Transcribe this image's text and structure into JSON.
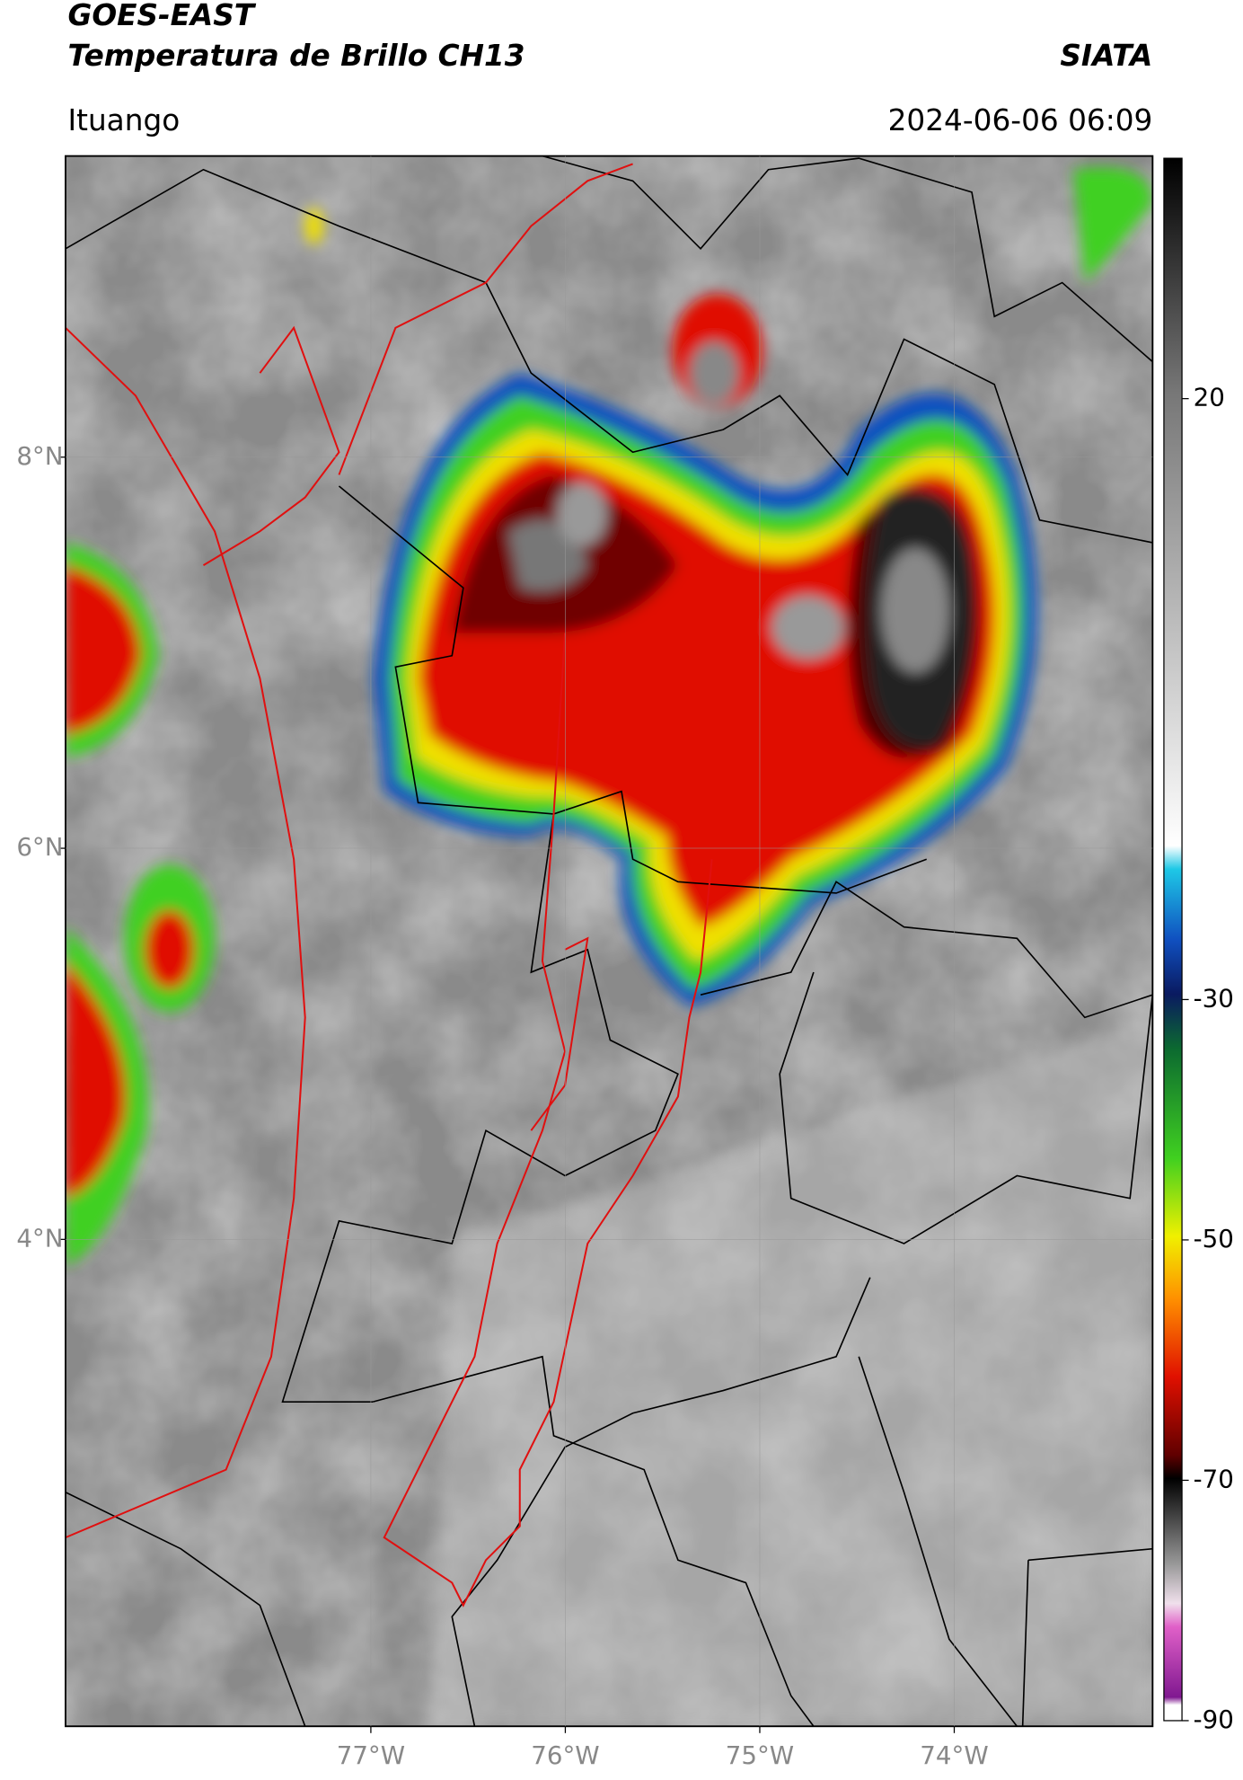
{
  "header": {
    "title_line1": "GOES-EAST",
    "title_line2": "Temperatura de Brillo CH13",
    "brand": "SIATA",
    "location": "Ituango",
    "timestamp": "2024-06-06 06:09"
  },
  "map": {
    "lonlim": [
      -78.57,
      -72.98
    ],
    "latlim": [
      1.51,
      9.54
    ],
    "lon_ticks": [
      {
        "value": -77,
        "label": "77°W"
      },
      {
        "value": -76,
        "label": "76°W"
      },
      {
        "value": -75,
        "label": "75°W"
      },
      {
        "value": -74,
        "label": "74°W"
      }
    ],
    "lat_ticks": [
      {
        "value": 8,
        "label": "8°N"
      },
      {
        "value": 6,
        "label": "6°N"
      },
      {
        "value": 4,
        "label": "4°N"
      }
    ]
  },
  "colorbar": {
    "lim": [
      -90,
      40
    ],
    "ticks": [
      20,
      -30,
      -50,
      -70,
      -90
    ]
  }
}
